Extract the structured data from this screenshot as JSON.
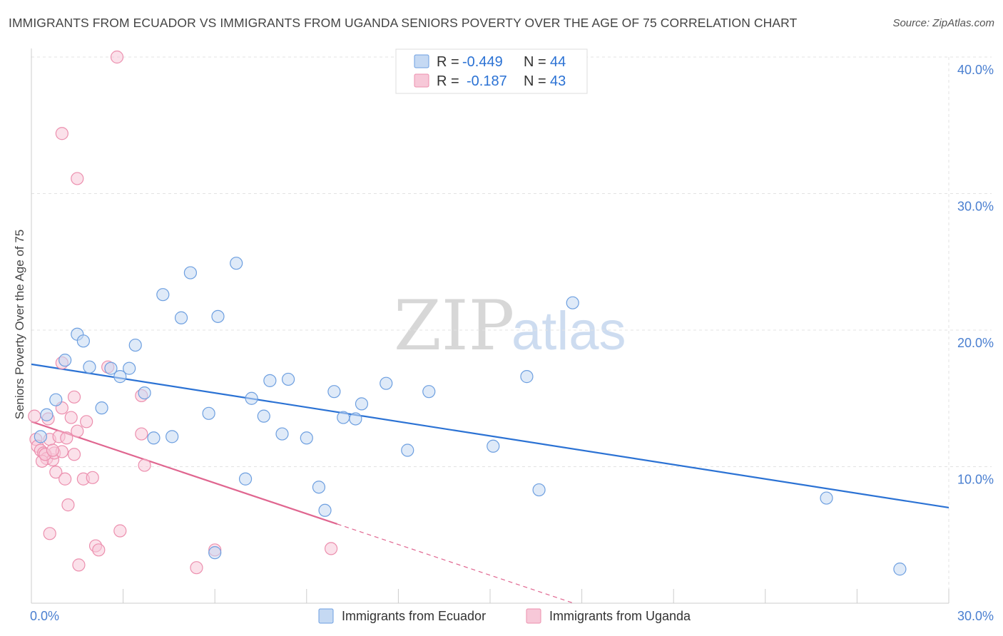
{
  "title": "IMMIGRANTS FROM ECUADOR VS IMMIGRANTS FROM UGANDA SENIORS POVERTY OVER THE AGE OF 75 CORRELATION CHART",
  "source": "Source: ZipAtlas.com",
  "watermark": {
    "zip": "ZIP",
    "atlas": "atlas"
  },
  "colors": {
    "ecuador": "#6d9fe0",
    "ecuador_fill": "#c5d9f3",
    "ecuador_line": "#2b72d4",
    "uganda": "#ec8fae",
    "uganda_fill": "#f7c8d8",
    "uganda_line": "#e06690",
    "tick": "#4a7fd0"
  },
  "stats": [
    {
      "r_label": "R =",
      "r_value": "-0.449",
      "n_label": "N =",
      "n_value": "44"
    },
    {
      "r_label": "R =",
      "r_value": "-0.187",
      "n_label": "N =",
      "n_value": "43"
    }
  ],
  "chart_data": {
    "type": "scatter",
    "title": "IMMIGRANTS FROM ECUADOR VS IMMIGRANTS FROM UGANDA SENIORS POVERTY OVER THE AGE OF 75 CORRELATION CHART",
    "xlabel": "",
    "ylabel": "Seniors Poverty Over the Age of 75",
    "xlim": [
      0,
      30
    ],
    "ylim": [
      0,
      40
    ],
    "x_tick_labels": [
      "0.0%",
      "30.0%"
    ],
    "y_ticks": [
      10,
      20,
      30,
      40
    ],
    "y_tick_labels": [
      "10.0%",
      "20.0%",
      "30.0%",
      "40.0%"
    ],
    "grid": true,
    "legend_position": "bottom",
    "series": [
      {
        "name": "Immigrants from Ecuador",
        "points": [
          [
            0.3,
            12.2
          ],
          [
            0.5,
            13.8
          ],
          [
            0.8,
            14.9
          ],
          [
            1.1,
            17.8
          ],
          [
            1.5,
            19.7
          ],
          [
            1.7,
            19.2
          ],
          [
            1.9,
            17.3
          ],
          [
            2.3,
            14.3
          ],
          [
            2.6,
            17.2
          ],
          [
            2.9,
            16.6
          ],
          [
            3.2,
            17.2
          ],
          [
            3.4,
            18.9
          ],
          [
            3.7,
            15.4
          ],
          [
            4.0,
            12.1
          ],
          [
            4.3,
            22.6
          ],
          [
            4.9,
            20.9
          ],
          [
            4.6,
            12.2
          ],
          [
            5.2,
            24.2
          ],
          [
            5.8,
            13.9
          ],
          [
            6.1,
            21.0
          ],
          [
            6.7,
            24.9
          ],
          [
            7.0,
            9.1
          ],
          [
            7.2,
            15.0
          ],
          [
            7.6,
            13.7
          ],
          [
            7.8,
            16.3
          ],
          [
            8.2,
            12.4
          ],
          [
            8.4,
            16.4
          ],
          [
            9.0,
            12.1
          ],
          [
            9.4,
            8.5
          ],
          [
            9.6,
            6.8
          ],
          [
            9.9,
            15.5
          ],
          [
            10.2,
            13.6
          ],
          [
            10.6,
            13.5
          ],
          [
            10.8,
            14.6
          ],
          [
            11.6,
            16.1
          ],
          [
            12.3,
            11.2
          ],
          [
            13.0,
            15.5
          ],
          [
            6.0,
            3.7
          ],
          [
            15.1,
            11.5
          ],
          [
            16.2,
            16.6
          ],
          [
            16.6,
            8.3
          ],
          [
            17.7,
            22.0
          ],
          [
            26.0,
            7.7
          ],
          [
            28.4,
            2.5
          ]
        ]
      },
      {
        "name": "Immigrants from Uganda",
        "points": [
          [
            0.1,
            13.7
          ],
          [
            0.15,
            12.0
          ],
          [
            0.2,
            11.5
          ],
          [
            0.3,
            11.2
          ],
          [
            0.4,
            11.0
          ],
          [
            0.5,
            10.6
          ],
          [
            0.55,
            13.5
          ],
          [
            0.6,
            12.0
          ],
          [
            0.7,
            10.5
          ],
          [
            0.75,
            11.0
          ],
          [
            0.8,
            9.6
          ],
          [
            0.9,
            12.2
          ],
          [
            1.0,
            11.1
          ],
          [
            1.0,
            14.3
          ],
          [
            1.1,
            9.1
          ],
          [
            1.2,
            7.2
          ],
          [
            1.3,
            13.6
          ],
          [
            1.4,
            10.9
          ],
          [
            1.5,
            12.6
          ],
          [
            1.7,
            9.1
          ],
          [
            1.8,
            13.3
          ],
          [
            2.0,
            9.2
          ],
          [
            2.1,
            4.2
          ],
          [
            2.2,
            3.9
          ],
          [
            1.55,
            2.8
          ],
          [
            0.6,
            5.1
          ],
          [
            1.0,
            17.6
          ],
          [
            1.4,
            15.1
          ],
          [
            2.5,
            17.3
          ],
          [
            2.9,
            5.3
          ],
          [
            3.6,
            15.2
          ],
          [
            3.6,
            12.4
          ],
          [
            3.7,
            10.1
          ],
          [
            2.8,
            40.0
          ],
          [
            1.0,
            34.4
          ],
          [
            1.5,
            31.1
          ],
          [
            5.4,
            2.6
          ],
          [
            6.0,
            3.9
          ],
          [
            9.8,
            4.0
          ],
          [
            0.35,
            10.4
          ],
          [
            0.45,
            10.9
          ],
          [
            0.7,
            11.2
          ],
          [
            1.15,
            12.1
          ]
        ]
      }
    ],
    "trend_lines": [
      {
        "series": "Immigrants from Ecuador",
        "x": [
          0,
          30
        ],
        "y": [
          17.5,
          7.0
        ]
      },
      {
        "series": "Immigrants from Uganda",
        "x": [
          0,
          10
        ],
        "y": [
          13.3,
          5.8
        ],
        "dashed_extension_x": [
          10,
          17.7
        ]
      }
    ]
  }
}
